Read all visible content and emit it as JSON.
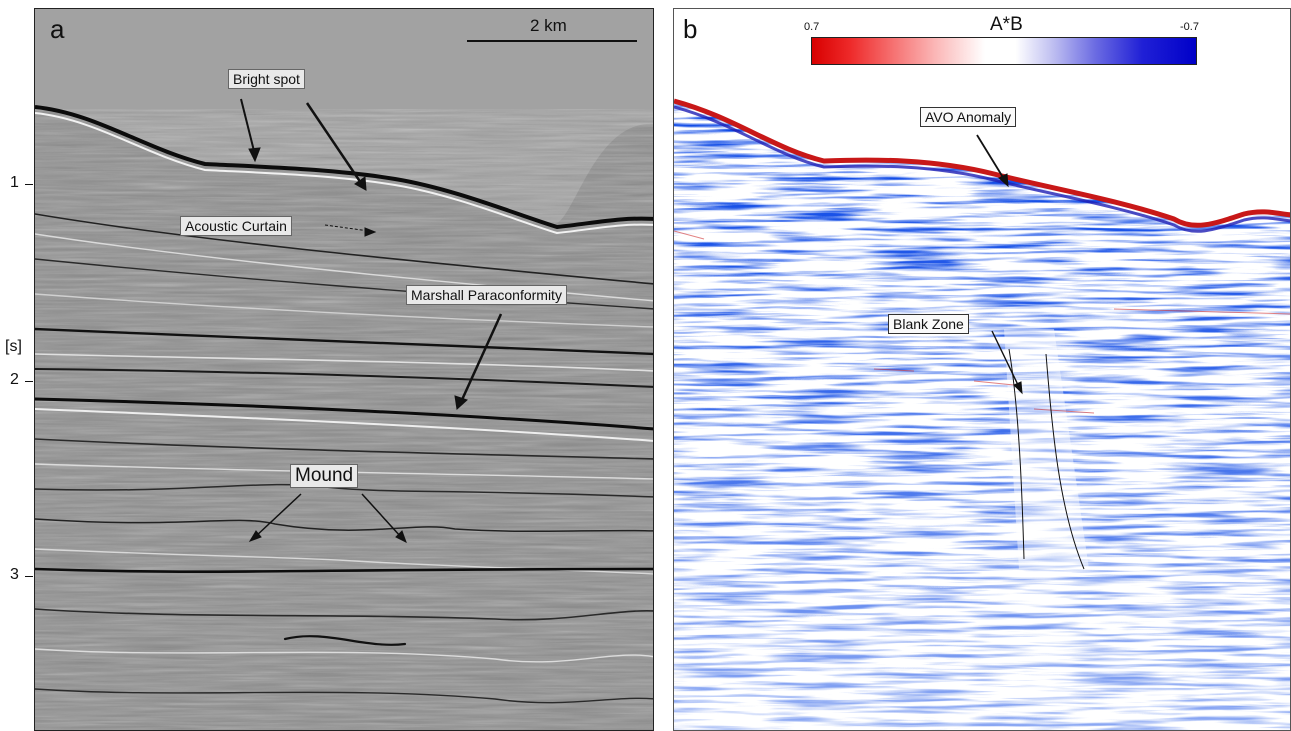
{
  "panel_a": {
    "letter": "a",
    "scale_bar_label": "2 km",
    "y_axis_label": "[s]",
    "y_ticks": [
      "1",
      "2",
      "3"
    ],
    "annotations": {
      "bright_spot": "Bright spot",
      "acoustic_curtain": "Acoustic Curtain",
      "marshall_paraconformity": "Marshall Paraconformity",
      "mound": "Mound"
    }
  },
  "panel_b": {
    "letter": "b",
    "colorbar": {
      "title": "A*B",
      "min_label": "0.7",
      "max_label": "-0.7",
      "colors": [
        "#d80000",
        "#ffffff",
        "#0000c8"
      ]
    },
    "annotations": {
      "avo_anomaly": "AVO Anomaly",
      "blank_zone": "Blank Zone"
    }
  }
}
